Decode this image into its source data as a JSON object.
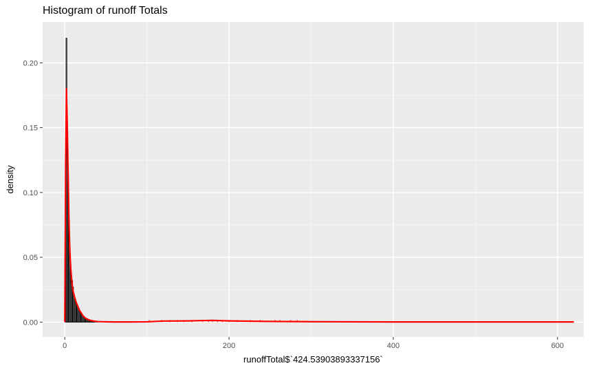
{
  "chart_data": {
    "type": "histogram",
    "title": "Histogram of runoff Totals",
    "xlabel": "runoffTotal$`424.53903893337156`",
    "ylabel": "density",
    "xlim": [
      -27,
      632
    ],
    "ylim": [
      -0.0115,
      0.2315
    ],
    "x_ticks": [
      0,
      200,
      400,
      600
    ],
    "x_tick_labels": [
      "0",
      "200",
      "400",
      "600"
    ],
    "y_ticks": [
      0,
      0.05,
      0.1,
      0.15,
      0.2
    ],
    "y_tick_labels": [
      "0.00",
      "0.05",
      "0.10",
      "0.15",
      "0.20"
    ],
    "grid": true,
    "panel_background": "#ebebeb",
    "bar_fill": "#ffffff",
    "bar_outline": "#000000",
    "density_color": "#ff0000",
    "bins": {
      "x": [
        1,
        2,
        3,
        4,
        5,
        6,
        7,
        8,
        9,
        10,
        11,
        12,
        13,
        14,
        15,
        16,
        17,
        18,
        19,
        20,
        21,
        22,
        23,
        24,
        25,
        26,
        27,
        28,
        29,
        30,
        31,
        32,
        33,
        34,
        35,
        36,
        38,
        40
      ],
      "density": [
        0.055,
        0.219,
        0.15,
        0.115,
        0.079,
        0.058,
        0.045,
        0.036,
        0.032,
        0.027,
        0.022,
        0.019,
        0.017,
        0.015,
        0.013,
        0.011,
        0.009,
        0.008,
        0.007,
        0.006,
        0.005,
        0.0045,
        0.004,
        0.0035,
        0.003,
        0.0027,
        0.0024,
        0.002,
        0.0018,
        0.0015,
        0.0013,
        0.0011,
        0.001,
        0.0009,
        0.0008,
        0.0007,
        0.0005,
        0.0004
      ]
    },
    "density_curve": {
      "x": [
        0,
        1,
        2,
        3,
        4,
        5,
        6,
        7,
        8,
        9,
        10,
        12,
        14,
        16,
        18,
        20,
        22,
        25,
        30,
        35,
        40,
        50,
        60,
        80,
        100,
        120,
        150,
        170,
        180,
        200,
        250,
        300,
        400,
        500,
        620
      ],
      "y": [
        0.0,
        0.12,
        0.18,
        0.152,
        0.116,
        0.08,
        0.058,
        0.044,
        0.035,
        0.029,
        0.024,
        0.019,
        0.015,
        0.012,
        0.009,
        0.007,
        0.005,
        0.003,
        0.0015,
        0.0008,
        0.0004,
        0.0002,
        0.0001,
        0.0001,
        0.0002,
        0.0008,
        0.0009,
        0.0012,
        0.0013,
        0.0009,
        0.0005,
        0.0003,
        0.0001,
        0.0001,
        0.0001
      ]
    },
    "rug_x": [
      103,
      118,
      128,
      137,
      145,
      155,
      168,
      175,
      180,
      186,
      192,
      200,
      210,
      226,
      238,
      256,
      262,
      275,
      283
    ]
  }
}
